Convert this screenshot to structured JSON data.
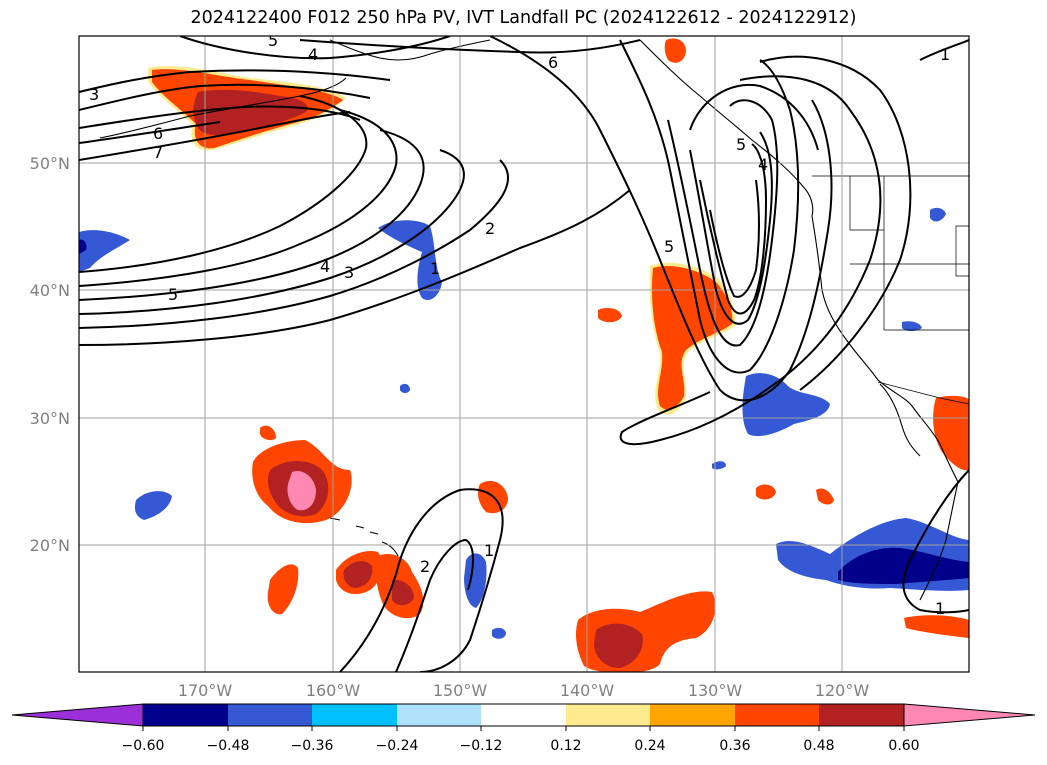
{
  "title": "2024122400 F012 250 hPa PV, IVT Landfall PC (2024122612 - 2024122912)",
  "map": {
    "lat_labels": [
      "50°N",
      "40°N",
      "30°N",
      "20°N"
    ],
    "lon_labels": [
      "170°W",
      "160°W",
      "150°W",
      "140°W",
      "130°W",
      "120°W"
    ],
    "contour_labels": [
      "3",
      "6",
      "7",
      "5",
      "4",
      "3",
      "2",
      "1",
      "5",
      "4",
      "6",
      "5",
      "4",
      "2",
      "1",
      "1",
      "5",
      "1"
    ],
    "gridline_color": "#a0a0a0"
  },
  "colorbar": {
    "ticks": [
      "−0.60",
      "−0.48",
      "−0.36",
      "−0.24",
      "−0.12",
      "0.12",
      "0.24",
      "0.36",
      "0.48",
      "0.60"
    ],
    "colors": [
      "#9b30d9",
      "#00008b",
      "#3559d4",
      "#00bfff",
      "#aee2fb",
      "#ffffff",
      "#ffea8f",
      "#ffa500",
      "#ff4500",
      "#b22222",
      "#ff88b3"
    ]
  }
}
